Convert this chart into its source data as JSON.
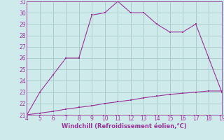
{
  "xlabel": "Windchill (Refroidissement éolien,°C)",
  "x_main": [
    4,
    5,
    6,
    7,
    8,
    9,
    10,
    11,
    12,
    13,
    14,
    15,
    16,
    17,
    18,
    19
  ],
  "y_main": [
    21,
    23,
    24.5,
    26,
    26,
    29.8,
    30,
    31,
    30,
    30,
    29,
    28.3,
    28.3,
    29,
    26,
    23
  ],
  "x_base": [
    4,
    5,
    6,
    7,
    8,
    9,
    10,
    11,
    12,
    13,
    14,
    15,
    16,
    17,
    18,
    19
  ],
  "y_base": [
    21,
    21.15,
    21.3,
    21.5,
    21.65,
    21.8,
    22.0,
    22.15,
    22.3,
    22.5,
    22.65,
    22.8,
    22.9,
    23.0,
    23.1,
    23.1
  ],
  "line_color": "#993399",
  "bg_color": "#ceeaea",
  "grid_color": "#aacccc",
  "xlim": [
    4,
    19
  ],
  "ylim": [
    21,
    31
  ],
  "xticks": [
    4,
    5,
    6,
    7,
    8,
    9,
    10,
    11,
    12,
    13,
    14,
    15,
    16,
    17,
    18,
    19
  ],
  "yticks": [
    21,
    22,
    23,
    24,
    25,
    26,
    27,
    28,
    29,
    30,
    31
  ]
}
